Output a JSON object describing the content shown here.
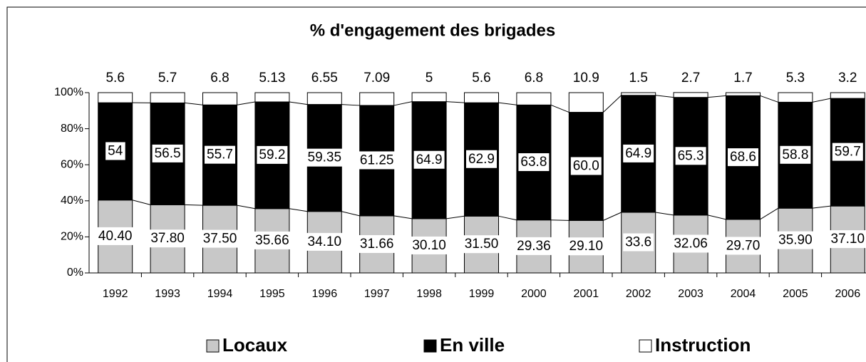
{
  "chart_data": {
    "type": "stacked_bar",
    "title": "% d'engagement des brigades",
    "categories": [
      "1992",
      "1993",
      "1994",
      "1995",
      "1996",
      "1997",
      "1998",
      "1999",
      "2000",
      "2001",
      "2002",
      "2003",
      "2004",
      "2005",
      "2006"
    ],
    "series": [
      {
        "name": "Locaux",
        "color": "#c8c8c8",
        "values": [
          40.4,
          37.8,
          37.5,
          35.66,
          34.1,
          31.66,
          30.1,
          31.5,
          29.36,
          29.1,
          33.6,
          32.06,
          29.7,
          35.9,
          37.1
        ],
        "value_labels": [
          "40.40",
          "37.80",
          "37.50",
          "35.66",
          "34.10",
          "31.66",
          "30.10",
          "31.50",
          "29.36",
          "29.10",
          "33.6",
          "32.06",
          "29.70",
          "35.90",
          "37.10"
        ]
      },
      {
        "name": "En ville",
        "color": "#000000",
        "values": [
          54,
          56.5,
          55.7,
          59.2,
          59.35,
          61.25,
          64.9,
          62.9,
          63.8,
          60,
          64.9,
          65.3,
          68.6,
          58.8,
          59.7
        ],
        "value_labels": [
          "54",
          "56.5",
          "55.7",
          "59.2",
          "59.35",
          "61.25",
          "64.9",
          "62.9",
          "63.8",
          "60.0",
          "64.9",
          "65.3",
          "68.6",
          "58.8",
          "59.7"
        ]
      },
      {
        "name": "Instruction",
        "color": "#ffffff",
        "values": [
          5.6,
          5.7,
          6.8,
          5.13,
          6.55,
          7.09,
          5,
          5.6,
          6.8,
          10.9,
          1.5,
          2.7,
          1.7,
          5.3,
          3.2
        ]
      }
    ],
    "ylim": [
      0,
      100
    ],
    "yticks": [
      {
        "value": 0,
        "label": "0%"
      },
      {
        "value": 20,
        "label": "20%"
      },
      {
        "value": 40,
        "label": "40%"
      },
      {
        "value": 60,
        "label": "60%"
      },
      {
        "value": 80,
        "label": "80%"
      },
      {
        "value": 100,
        "label": "100%"
      }
    ],
    "legend": "bottom"
  }
}
